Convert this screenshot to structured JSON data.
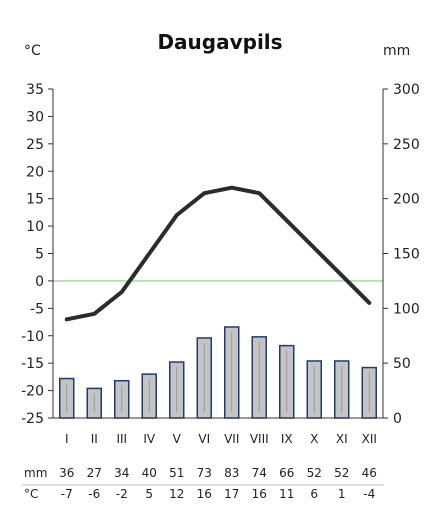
{
  "chart_data": {
    "type": "bar+line",
    "title": "Daugavpils",
    "left_unit": "°C",
    "right_unit": "mm",
    "categories": [
      "I",
      "II",
      "III",
      "IV",
      "V",
      "VI",
      "VII",
      "VIII",
      "IX",
      "X",
      "XI",
      "XII"
    ],
    "precipitation_mm": [
      36,
      27,
      34,
      40,
      51,
      73,
      83,
      74,
      66,
      52,
      52,
      46
    ],
    "temperature_c": [
      -7,
      -6,
      -2,
      5,
      12,
      16,
      17,
      16,
      11,
      6,
      1,
      -4
    ],
    "left_axis": {
      "min": -25,
      "max": 35,
      "ticks": [
        "35",
        "30",
        "25",
        "20",
        "15",
        "10",
        "5",
        "0",
        "-5",
        "-10",
        "-15",
        "-20",
        "-25"
      ]
    },
    "right_axis": {
      "min": 0,
      "max": 300,
      "ticks": [
        "300",
        "250",
        "200",
        "150",
        "100",
        "50",
        "0"
      ]
    },
    "table": {
      "precip_label": "mm",
      "temp_label": "°C",
      "precip_values": [
        "36",
        "27",
        "34",
        "40",
        "51",
        "73",
        "83",
        "74",
        "66",
        "52",
        "52",
        "46"
      ],
      "temp_values": [
        "-7",
        "-6",
        "-2",
        "5",
        "12",
        "16",
        "17",
        "16",
        "11",
        "6",
        "1",
        "-4"
      ]
    },
    "colors": {
      "bar_fill": "#c4c4c4",
      "bar_stroke": "#1f3b73",
      "line": "#2b2b2b",
      "zero_line": "#8fc48f",
      "axis": "#333333"
    }
  }
}
